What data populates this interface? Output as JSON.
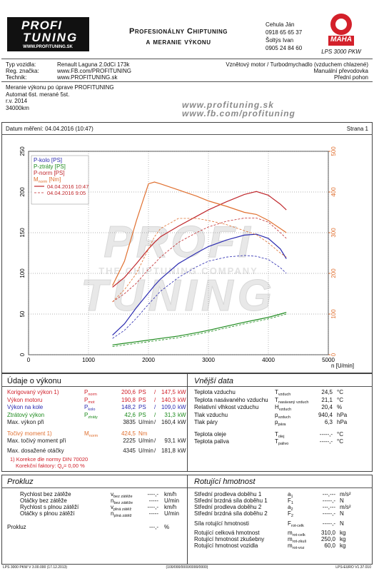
{
  "header": {
    "logo_top": "PROFI",
    "logo_bottom": "TUNING",
    "logo_url": "WWW.PROFITUNING.SK",
    "slogan_1": "Profesionálny Chiptuning",
    "slogan_2": "a meranie výkonu",
    "contacts": [
      "Cehula Ján",
      "0918 65 65 37",
      "Šoltýs Ivan",
      "0905 24 84 60"
    ],
    "brand": "MAHA",
    "model": "LPS 3000 PKW"
  },
  "vehicle": {
    "rows": [
      [
        "Typ vozidla:",
        "Renault Laguna 2.0dCi 173k"
      ],
      [
        "Reg. značka:",
        "www.FB.com/PROFITUNING"
      ],
      [
        "Technik:",
        "www.PROFITUNING.sk"
      ]
    ],
    "right": [
      "Vznětový motor / Turbodmychadlo (vzduchem chlazené)",
      "Manuální převodovka",
      "Přední pohon"
    ]
  },
  "notes": [
    "Meranie výkonu po úprave PROFITUNING",
    "Automat 6st. merané 5st.",
    "r.v. 2014",
    "34000km"
  ],
  "links": [
    "www.profituning.sk",
    "www.fb.com/profituning"
  ],
  "measurement": {
    "date": "Datum měření: 04.04.2016 (10:47)",
    "page": "Strana 1"
  },
  "chart_data": {
    "type": "line",
    "x_label": "n [U/min]",
    "x": [
      1400,
      1600,
      1800,
      2000,
      2100,
      2200,
      2500,
      2800,
      3000,
      3300,
      3600,
      3800,
      4000,
      4200,
      4300
    ],
    "xlim": [
      0,
      5000
    ],
    "xticks": [
      0,
      1000,
      2000,
      3000,
      4000,
      5000
    ],
    "ylim": [
      0,
      250
    ],
    "yticks": [
      0,
      50,
      100,
      150,
      200,
      250
    ],
    "y2lim": [
      0,
      500
    ],
    "y2ticks": [
      0,
      100,
      200,
      300,
      400,
      500
    ],
    "y2color": "#e07030",
    "grid": true,
    "legend": "upper left",
    "runs": [
      {
        "label": "04.04.2016 10:47",
        "dashed": false
      },
      {
        "label": "04.04.2016 9:05",
        "dashed": true
      }
    ],
    "series": [
      {
        "name": "P-kolo [PS]",
        "color": "#2b2bb0",
        "runs": [
          [
            24,
            38,
            58,
            76,
            85,
            93,
            112,
            125,
            133,
            141,
            147,
            148.2,
            143,
            130,
            118
          ],
          [
            20,
            30,
            45,
            62,
            70,
            78,
            95,
            108,
            115,
            120,
            122,
            121,
            117,
            107,
            100
          ]
        ]
      },
      {
        "name": "P-ztráty [PS]",
        "color": "#1c8a1c",
        "runs": [
          [
            12,
            14,
            16,
            18,
            19,
            20,
            23,
            27,
            30,
            35,
            40,
            43,
            46,
            50,
            52
          ],
          [
            10,
            12,
            14,
            16,
            17,
            18,
            21,
            25,
            28,
            33,
            38,
            41,
            44,
            48,
            50
          ]
        ]
      },
      {
        "name": "P-norm [PS]",
        "color": "#c0282d",
        "runs": [
          [
            83,
            95,
            112,
            130,
            138,
            145,
            158,
            170,
            178,
            188,
            197,
            200.6,
            196,
            185,
            178
          ],
          [
            65,
            75,
            88,
            105,
            112,
            120,
            138,
            150,
            157,
            164,
            168,
            168,
            163,
            150,
            143
          ]
        ]
      },
      {
        "name": "M",
        "name_sub": "norm",
        "name_unit": " [Nm]",
        "color": "#e07030",
        "axis": "y2",
        "runs": [
          [
            170,
            230,
            330,
            420,
            424.5,
            420,
            405,
            390,
            378,
            365,
            350,
            345,
            330,
            310,
            300
          ],
          [
            130,
            160,
            200,
            260,
            290,
            310,
            335,
            335,
            330,
            320,
            305,
            295,
            275,
            250,
            240
          ]
        ]
      }
    ]
  },
  "watermark": {
    "top": "PROFI",
    "tagline": "THE CHIPTUNING COMPANY",
    "bottom": "TUNING"
  },
  "performance": {
    "title": "Údaje o výkonu",
    "rows": [
      {
        "label": "Korigovaný výkon 1)",
        "sym": "P",
        "sub": "norm",
        "v1": "200,6",
        "u1": "PS",
        "sep": "/",
        "v2": "147,5",
        "u2": "kW",
        "color": "#d0202a"
      },
      {
        "label": "Výkon motoru",
        "sym": "P",
        "sub": "mot",
        "v1": "190,8",
        "u1": "PS",
        "sep": "/",
        "v2": "140,3",
        "u2": "kW",
        "color": "#d0202a"
      },
      {
        "label": "Výkon na kole",
        "sym": "P",
        "sub": "kolo",
        "v1": "148,2",
        "u1": "PS",
        "sep": "/",
        "v2": "109,0",
        "u2": "kW",
        "color": "#2b2bb0"
      },
      {
        "label": "Ztrátový výkon",
        "sym": "P",
        "sub": "ztráty",
        "v1": "42,6",
        "u1": "PS",
        "sep": "/",
        "v2": "31,3",
        "u2": "kW",
        "color": "#1c8a1c"
      },
      {
        "label": "Max. výkon při",
        "v1": "3835",
        "u1": "U/min",
        "sep": "/",
        "v2": "160,4",
        "u2": "kW",
        "color": "#222222"
      },
      {
        "label": "Točivý moment 1)",
        "sym": "M",
        "sub": "norm",
        "v1": "424,5",
        "u1": "Nm",
        "color": "#e07030"
      },
      {
        "label": "Max. točivý moment při",
        "v1": "2225",
        "u1": "U/min",
        "sep": "/",
        "v2": "93,1",
        "u2": "kW",
        "color": "#222222"
      },
      {
        "label": "Max. dosažené otáčky",
        "v1": "4345",
        "u1": "U/min",
        "sep": "/",
        "v2": "181,8",
        "u2": "kW",
        "color": "#222222"
      }
    ],
    "note_1": "1) Korekce dle normy DIN 70020",
    "note_2": {
      "text": "Korekční faktory: Q",
      "sub": "v",
      "rest": "=  0,00 %"
    }
  },
  "external": {
    "title": "Vnější data",
    "rows": [
      {
        "label": "Teplota vzduchu",
        "sym": "T",
        "sub": "vzduch",
        "v": "24,5",
        "u": "°C"
      },
      {
        "label": "Teplota nasávaného vzduchu",
        "sym": "T",
        "sub": "nasávaný vzduch",
        "v": "21,1",
        "u": "°C"
      },
      {
        "label": "Relativní vlhkost vzduchu",
        "sym": "H",
        "sub": "vzduch",
        "v": "20,4",
        "u": "%"
      },
      {
        "label": "Tlak vzduchu",
        "sym": "p",
        "sub": "vzduch",
        "v": "940,4",
        "u": "hPa"
      },
      {
        "label": "Tlak páry",
        "sym": "p",
        "sub": "pára",
        "v": "6,3",
        "u": "hPa"
      },
      {
        "label": "Teplota oleje",
        "sym": "T",
        "sub": "olej",
        "v": "-----,-",
        "u": "°C"
      },
      {
        "label": "Teplota paliva",
        "sym": "T",
        "sub": "palivo",
        "v": "-----,-",
        "u": "°C"
      }
    ]
  },
  "slip": {
    "title": "Prokluz",
    "rows": [
      {
        "label": "Rychlost bez zátěže",
        "sym": "v",
        "sub": "bez zátěže",
        "v": "----,-",
        "u": "km/h"
      },
      {
        "label": "Otáčky bez zátěže",
        "sym": "n",
        "sub": "bez zátěže",
        "v": "-----",
        "u": "U/min"
      },
      {
        "label": "Rychlost s plnou zátěží",
        "sym": "v",
        "sub": "plná zátěž",
        "v": "----,-",
        "u": "km/h"
      },
      {
        "label": "Otáčky s plnou zátěží",
        "sym": "n",
        "sub": "plná zátěž",
        "v": "-----",
        "u": "U/min"
      },
      {
        "label": "Prokluz",
        "v": "---,-",
        "u": "%"
      }
    ]
  },
  "rotating": {
    "title": "Rotující hmotnost",
    "rows": [
      {
        "label": "Střední prodleva doběhu 1",
        "sym": "a",
        "sub": "1",
        "v": "---,---",
        "u": "m/s²"
      },
      {
        "label": "Střední brzdná síla doběhu 1",
        "sym": "F",
        "sub": "1",
        "v": "-----,-",
        "u": "N"
      },
      {
        "label": "Střední prodleva doběhu 2",
        "sym": "a",
        "sub": "2",
        "v": "---,---",
        "u": "m/s²"
      },
      {
        "label": "Střední brzdná síla doběhu 2",
        "sym": "F",
        "sub": "2",
        "v": "-----,-",
        "u": "N"
      },
      {
        "label": "Síla rotující hmotnosti",
        "sym": "F",
        "sub": "rot-celk",
        "v": "-----,-",
        "u": "N"
      },
      {
        "label": "Rotující celková hmotnost",
        "sym": "m",
        "sub": "rot-celk",
        "v": "310,0",
        "u": "kg"
      },
      {
        "label": "Rotující hmotnost zkušebny",
        "sym": "m",
        "sub": "rot-zkuš",
        "v": "250,0",
        "u": "kg"
      },
      {
        "label": "Rotující hmotnost vozidla",
        "sym": "m",
        "sub": "rot-voz",
        "v": "60,0",
        "u": "kg"
      }
    ]
  },
  "footer": [
    "LPS 3000 PKW V 3.00.000 (17.12.2013)",
    "(100/000/0000/0000/0000)",
    "LPS-EURO V1.37.010"
  ]
}
